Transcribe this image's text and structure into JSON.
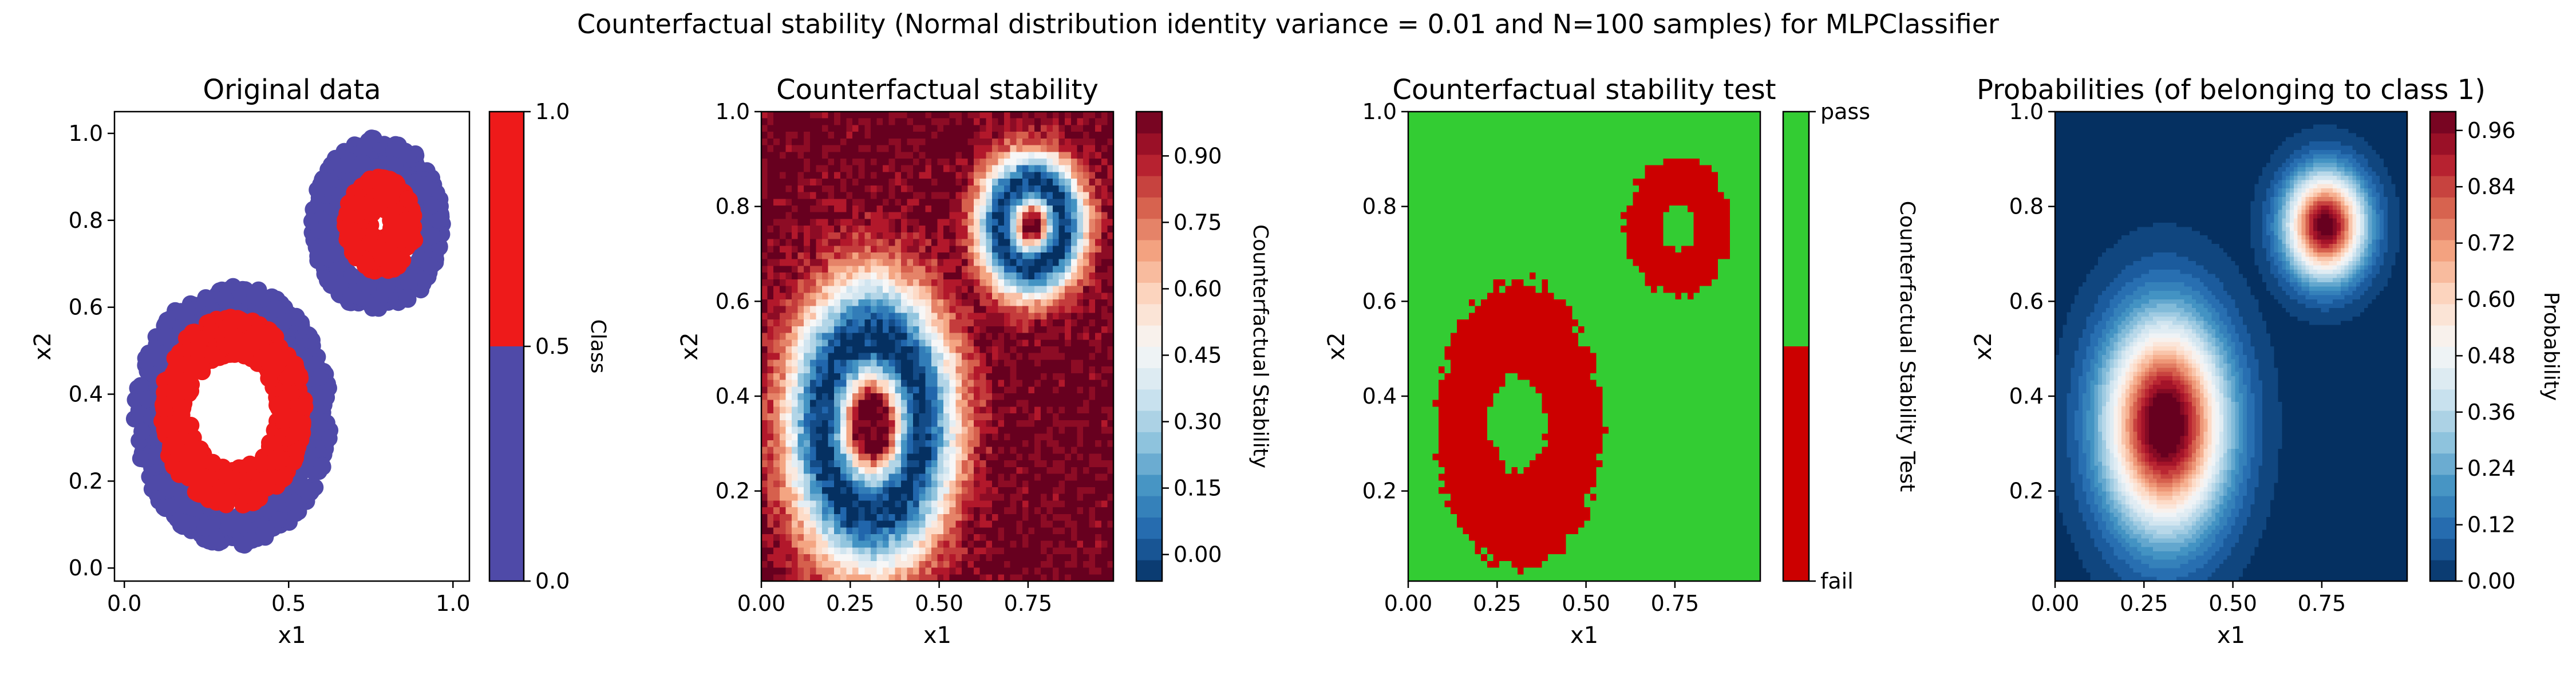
{
  "figure": {
    "suptitle": "Counterfactual stability (Normal distribution identity variance = 0.01 and N=100 samples) for MLPClassifier"
  },
  "chart_data": [
    {
      "type": "scatter",
      "title": "Original data",
      "xlabel": "x1",
      "ylabel": "x2",
      "xlim": [
        -0.03,
        1.05
      ],
      "ylim": [
        -0.03,
        1.05
      ],
      "xticks": [
        "0.0",
        "0.5",
        "1.0"
      ],
      "yticks": [
        "0.0",
        "0.2",
        "0.4",
        "0.6",
        "0.8",
        "1.0"
      ],
      "grid": false,
      "series": [
        {
          "class": 0,
          "color": "#4f4aa8",
          "rings": [
            {
              "cx": 0.33,
              "cy": 0.35,
              "r_inner": 0.21,
              "r_outer": 0.3
            },
            {
              "cx": 0.77,
              "cy": 0.79,
              "r_inner": 0.13,
              "r_outer": 0.2
            }
          ]
        },
        {
          "class": 1,
          "color": "#ee1a1a",
          "rings": [
            {
              "cx": 0.33,
              "cy": 0.36,
              "r_inner": 0.13,
              "r_outer": 0.22
            },
            {
              "cx": 0.78,
              "cy": 0.79,
              "r_inner": 0.03,
              "r_outer": 0.11
            }
          ]
        }
      ],
      "colorbar": {
        "label": "Class",
        "ticks": [
          "0.0",
          "0.5",
          "1.0"
        ],
        "colors": [
          "#4f4aa8",
          "#ee1a1a"
        ]
      }
    },
    {
      "type": "heatmap",
      "title": "Counterfactual stability",
      "xlabel": "x1",
      "ylabel": "x2",
      "xlim": [
        0.0,
        0.99
      ],
      "ylim": [
        0.01,
        1.0
      ],
      "xticks": [
        "0.00",
        "0.25",
        "0.50",
        "0.75"
      ],
      "yticks": [
        "0.2",
        "0.4",
        "0.6",
        "0.8",
        "1.0"
      ],
      "colormap": "RdBu_r",
      "colorbar": {
        "label": "Counterfactual Stability",
        "ticks": [
          "0.00",
          "0.15",
          "0.30",
          "0.45",
          "0.60",
          "0.75",
          "0.90"
        ],
        "range": [
          -0.06,
          1.0
        ]
      }
    },
    {
      "type": "heatmap",
      "title": "Counterfactual stability test",
      "xlabel": "x1",
      "ylabel": "x2",
      "xlim": [
        0.0,
        0.99
      ],
      "ylim": [
        0.01,
        1.0
      ],
      "xticks": [
        "0.00",
        "0.25",
        "0.50",
        "0.75"
      ],
      "yticks": [
        "0.2",
        "0.4",
        "0.6",
        "0.8",
        "1.0"
      ],
      "colors": {
        "pass": "#33cc33",
        "fail": "#cc0000"
      },
      "colorbar": {
        "label": "Counterfactual Stability Test",
        "ticks": [
          "fail",
          "pass"
        ]
      }
    },
    {
      "type": "heatmap",
      "title": "Probabilities (of belonging to class 1)",
      "xlabel": "x1",
      "ylabel": "x2",
      "xlim": [
        0.0,
        0.99
      ],
      "ylim": [
        0.01,
        1.0
      ],
      "xticks": [
        "0.00",
        "0.25",
        "0.50",
        "0.75"
      ],
      "yticks": [
        "0.2",
        "0.4",
        "0.6",
        "0.8",
        "1.0"
      ],
      "colormap": "RdBu_r",
      "colorbar": {
        "label": "Probability",
        "ticks": [
          "0.00",
          "0.12",
          "0.24",
          "0.36",
          "0.48",
          "0.60",
          "0.72",
          "0.84",
          "0.96"
        ],
        "range": [
          0.0,
          1.0
        ]
      }
    }
  ]
}
